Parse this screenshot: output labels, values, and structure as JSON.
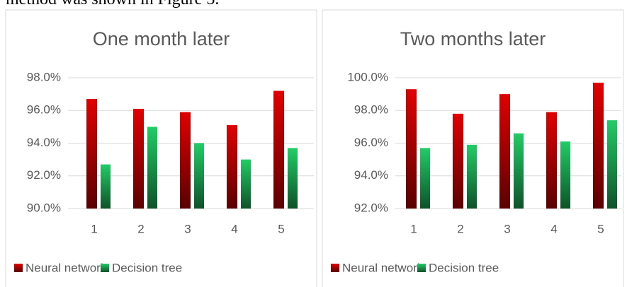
{
  "text": "method was shown in Figure 5.",
  "chart_data": [
    {
      "type": "bar",
      "title": "One month later",
      "categories": [
        "1",
        "2",
        "3",
        "4",
        "5"
      ],
      "series": [
        {
          "name": "Neural network",
          "color": "#e00000",
          "values": [
            96.7,
            96.1,
            95.9,
            95.1,
            97.2
          ]
        },
        {
          "name": "Decision tree",
          "color": "#22cc66",
          "values": [
            92.7,
            95.0,
            94.0,
            93.0,
            93.7
          ]
        }
      ],
      "ylim": [
        90,
        98
      ],
      "yticks": [
        {
          "value": 90,
          "label": "90.0%"
        },
        {
          "value": 92,
          "label": "92.0%"
        },
        {
          "value": 94,
          "label": "94.0%"
        },
        {
          "value": 96,
          "label": "96.0%"
        },
        {
          "value": 98,
          "label": "98.0%"
        }
      ],
      "grid": true,
      "legend": "bottom"
    },
    {
      "type": "bar",
      "title": "Two months later",
      "categories": [
        "1",
        "2",
        "3",
        "4",
        "5"
      ],
      "series": [
        {
          "name": "Neural network",
          "color": "#e00000",
          "values": [
            99.3,
            97.8,
            99.0,
            97.9,
            99.7
          ]
        },
        {
          "name": "Decision tree",
          "color": "#22cc66",
          "values": [
            95.7,
            95.9,
            96.6,
            96.1,
            97.4
          ]
        }
      ],
      "ylim": [
        92,
        100
      ],
      "yticks": [
        {
          "value": 92,
          "label": "92.0%"
        },
        {
          "value": 94,
          "label": "94.0%"
        },
        {
          "value": 96,
          "label": "96.0%"
        },
        {
          "value": 98,
          "label": "98.0%"
        },
        {
          "value": 100,
          "label": "100.0%"
        }
      ],
      "grid": true,
      "legend": "bottom"
    }
  ]
}
